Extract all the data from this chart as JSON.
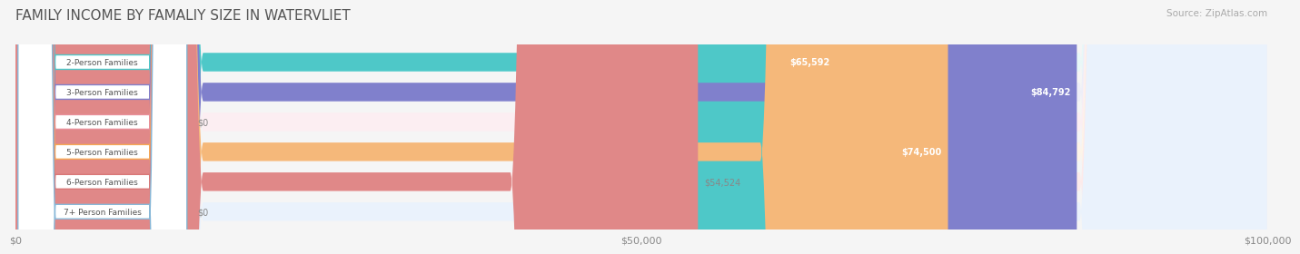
{
  "title": "FAMILY INCOME BY FAMALIY SIZE IN WATERVLIET",
  "source": "Source: ZipAtlas.com",
  "categories": [
    "2-Person Families",
    "3-Person Families",
    "4-Person Families",
    "5-Person Families",
    "6-Person Families",
    "7+ Person Families"
  ],
  "values": [
    65592,
    84792,
    0,
    74500,
    54524,
    0
  ],
  "bar_colors": [
    "#4ec8c8",
    "#8080cc",
    "#f0a0b0",
    "#f5b87a",
    "#e08888",
    "#a0c4e8"
  ],
  "bg_colors": [
    "#e8f8f8",
    "#eeeef8",
    "#fceef2",
    "#fef4e8",
    "#fdeaea",
    "#eaf2fc"
  ],
  "label_colors": [
    "#4ec8c8",
    "#8080cc",
    "#e8909a",
    "#f5a855",
    "#d87878",
    "#88b8d8"
  ],
  "value_labels": [
    "$65,592",
    "$84,792",
    "$0",
    "$74,500",
    "$54,524",
    "$0"
  ],
  "value_inside": [
    true,
    true,
    false,
    true,
    false,
    false
  ],
  "xmax": 100000,
  "xlabel_ticks": [
    0,
    50000,
    100000
  ],
  "xlabel_labels": [
    "$0",
    "$50,000",
    "$100,000"
  ],
  "title_fontsize": 11,
  "bar_height": 0.62,
  "figsize": [
    14.06,
    3.05
  ]
}
